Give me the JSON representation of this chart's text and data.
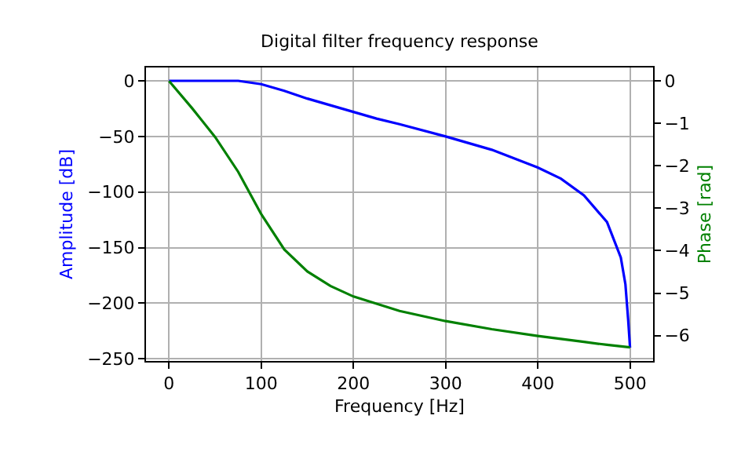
{
  "chart_data": {
    "type": "line",
    "title": "Digital filter frequency response",
    "xlabel": "Frequency [Hz]",
    "ylabel": "Amplitude [dB]",
    "y2label": "Phase [rad]",
    "xlim": [
      -25,
      525
    ],
    "xticks": [
      0,
      100,
      200,
      300,
      400,
      500
    ],
    "ylim": [
      -252,
      12
    ],
    "yticks": [
      {
        "value": -250,
        "label": "−250"
      },
      {
        "value": -200,
        "label": "−200"
      },
      {
        "value": -150,
        "label": "−150"
      },
      {
        "value": -100,
        "label": "−100"
      },
      {
        "value": -50,
        "label": "−50"
      },
      0
    ],
    "y2lim": [
      -6.6,
      0.32
    ],
    "y2ticks": [
      {
        "value": -6,
        "label": "−6"
      },
      {
        "value": -5,
        "label": "−5"
      },
      {
        "value": -4,
        "label": "−4"
      },
      {
        "value": -3,
        "label": "−3"
      },
      {
        "value": -2,
        "label": "−2"
      },
      {
        "value": -1,
        "label": "−1"
      },
      0
    ],
    "grid": true,
    "marker": "none",
    "line_style": "solid",
    "series": [
      {
        "color": "#0000ff",
        "x": [
          0,
          25,
          50,
          75,
          100,
          125,
          150,
          175,
          200,
          225,
          250,
          300,
          350,
          400,
          425,
          450,
          475,
          490,
          495,
          498,
          500
        ],
        "values": [
          0,
          0,
          0,
          0,
          -3,
          -9,
          -16,
          -22,
          -28,
          -34,
          -39,
          -50,
          -62,
          -78,
          -88,
          -103,
          -127,
          -159,
          -183,
          -215,
          -240
        ]
      },
      {
        "color": "#008000",
        "axis": "y2",
        "x": [
          0,
          25,
          50,
          75,
          100,
          125,
          150,
          175,
          200,
          250,
          300,
          350,
          400,
          425,
          450,
          475,
          500
        ],
        "values": [
          0,
          -0.64,
          -1.32,
          -2.14,
          -3.14,
          -3.97,
          -4.49,
          -4.83,
          -5.08,
          -5.42,
          -5.66,
          -5.85,
          -6.01,
          -6.08,
          -6.15,
          -6.22,
          -6.28
        ]
      }
    ]
  }
}
